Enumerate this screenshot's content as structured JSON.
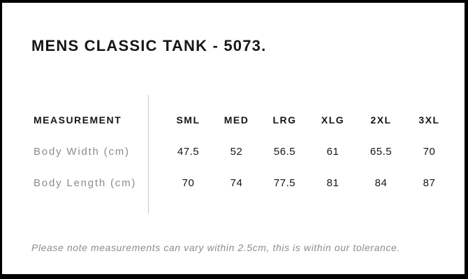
{
  "page": {
    "title": "MENS CLASSIC TANK - 5073.",
    "note": "Please note measurements can vary within 2.5cm, this is within our tolerance."
  },
  "size_chart": {
    "type": "table",
    "header_label": "MEASUREMENT",
    "columns": [
      "SML",
      "MED",
      "LRG",
      "XLG",
      "2XL",
      "3XL"
    ],
    "rows": [
      {
        "label": "Body Width (cm)",
        "values": [
          "47.5",
          "52",
          "56.5",
          "61",
          "65.5",
          "70"
        ]
      },
      {
        "label": "Body Length (cm)",
        "values": [
          "70",
          "74",
          "77.5",
          "81",
          "84",
          "87"
        ]
      }
    ]
  },
  "colors": {
    "frame_border": "#000000",
    "text_primary": "#161616",
    "text_muted": "#8c8c8c",
    "divider": "#c9c9c9",
    "background": "#ffffff"
  }
}
